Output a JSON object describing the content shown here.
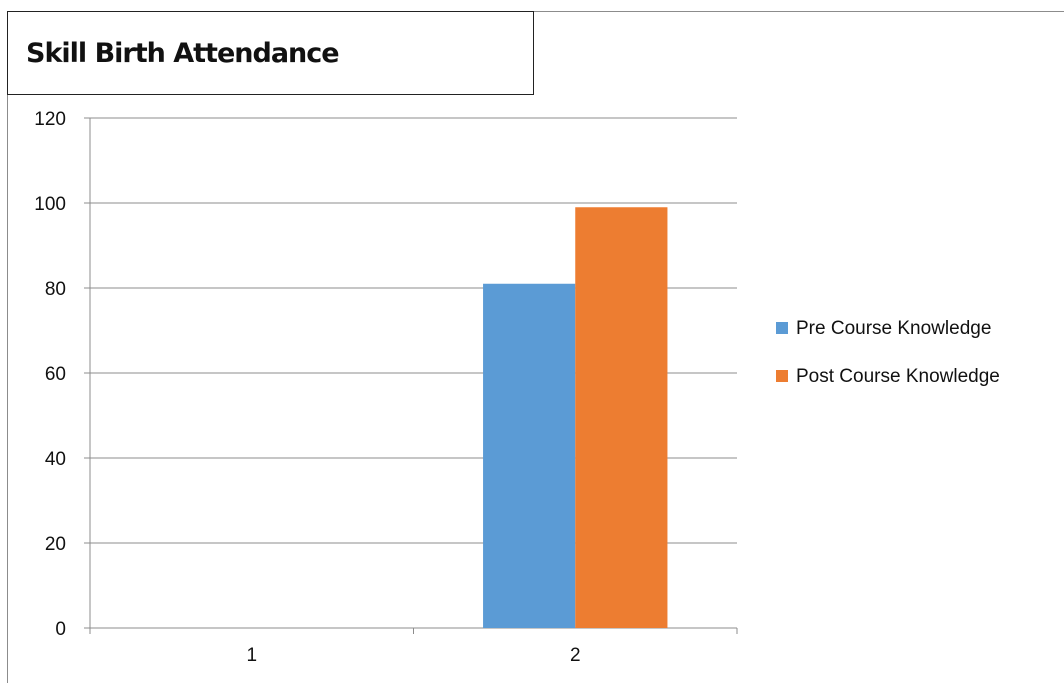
{
  "chart_data": {
    "type": "bar",
    "title": "Skill Birth Attendance",
    "categories": [
      "1",
      "2"
    ],
    "series": [
      {
        "name": "Pre Course Knowledge",
        "color": "#5b9bd5",
        "values": [
          0,
          81
        ]
      },
      {
        "name": "Post Course Knowledge",
        "color": "#ed7d31",
        "values": [
          0,
          99
        ]
      }
    ],
    "ylim": [
      0,
      120
    ],
    "yticks": [
      0,
      20,
      40,
      60,
      80,
      100,
      120
    ],
    "grid": true,
    "legend_position": "right"
  }
}
